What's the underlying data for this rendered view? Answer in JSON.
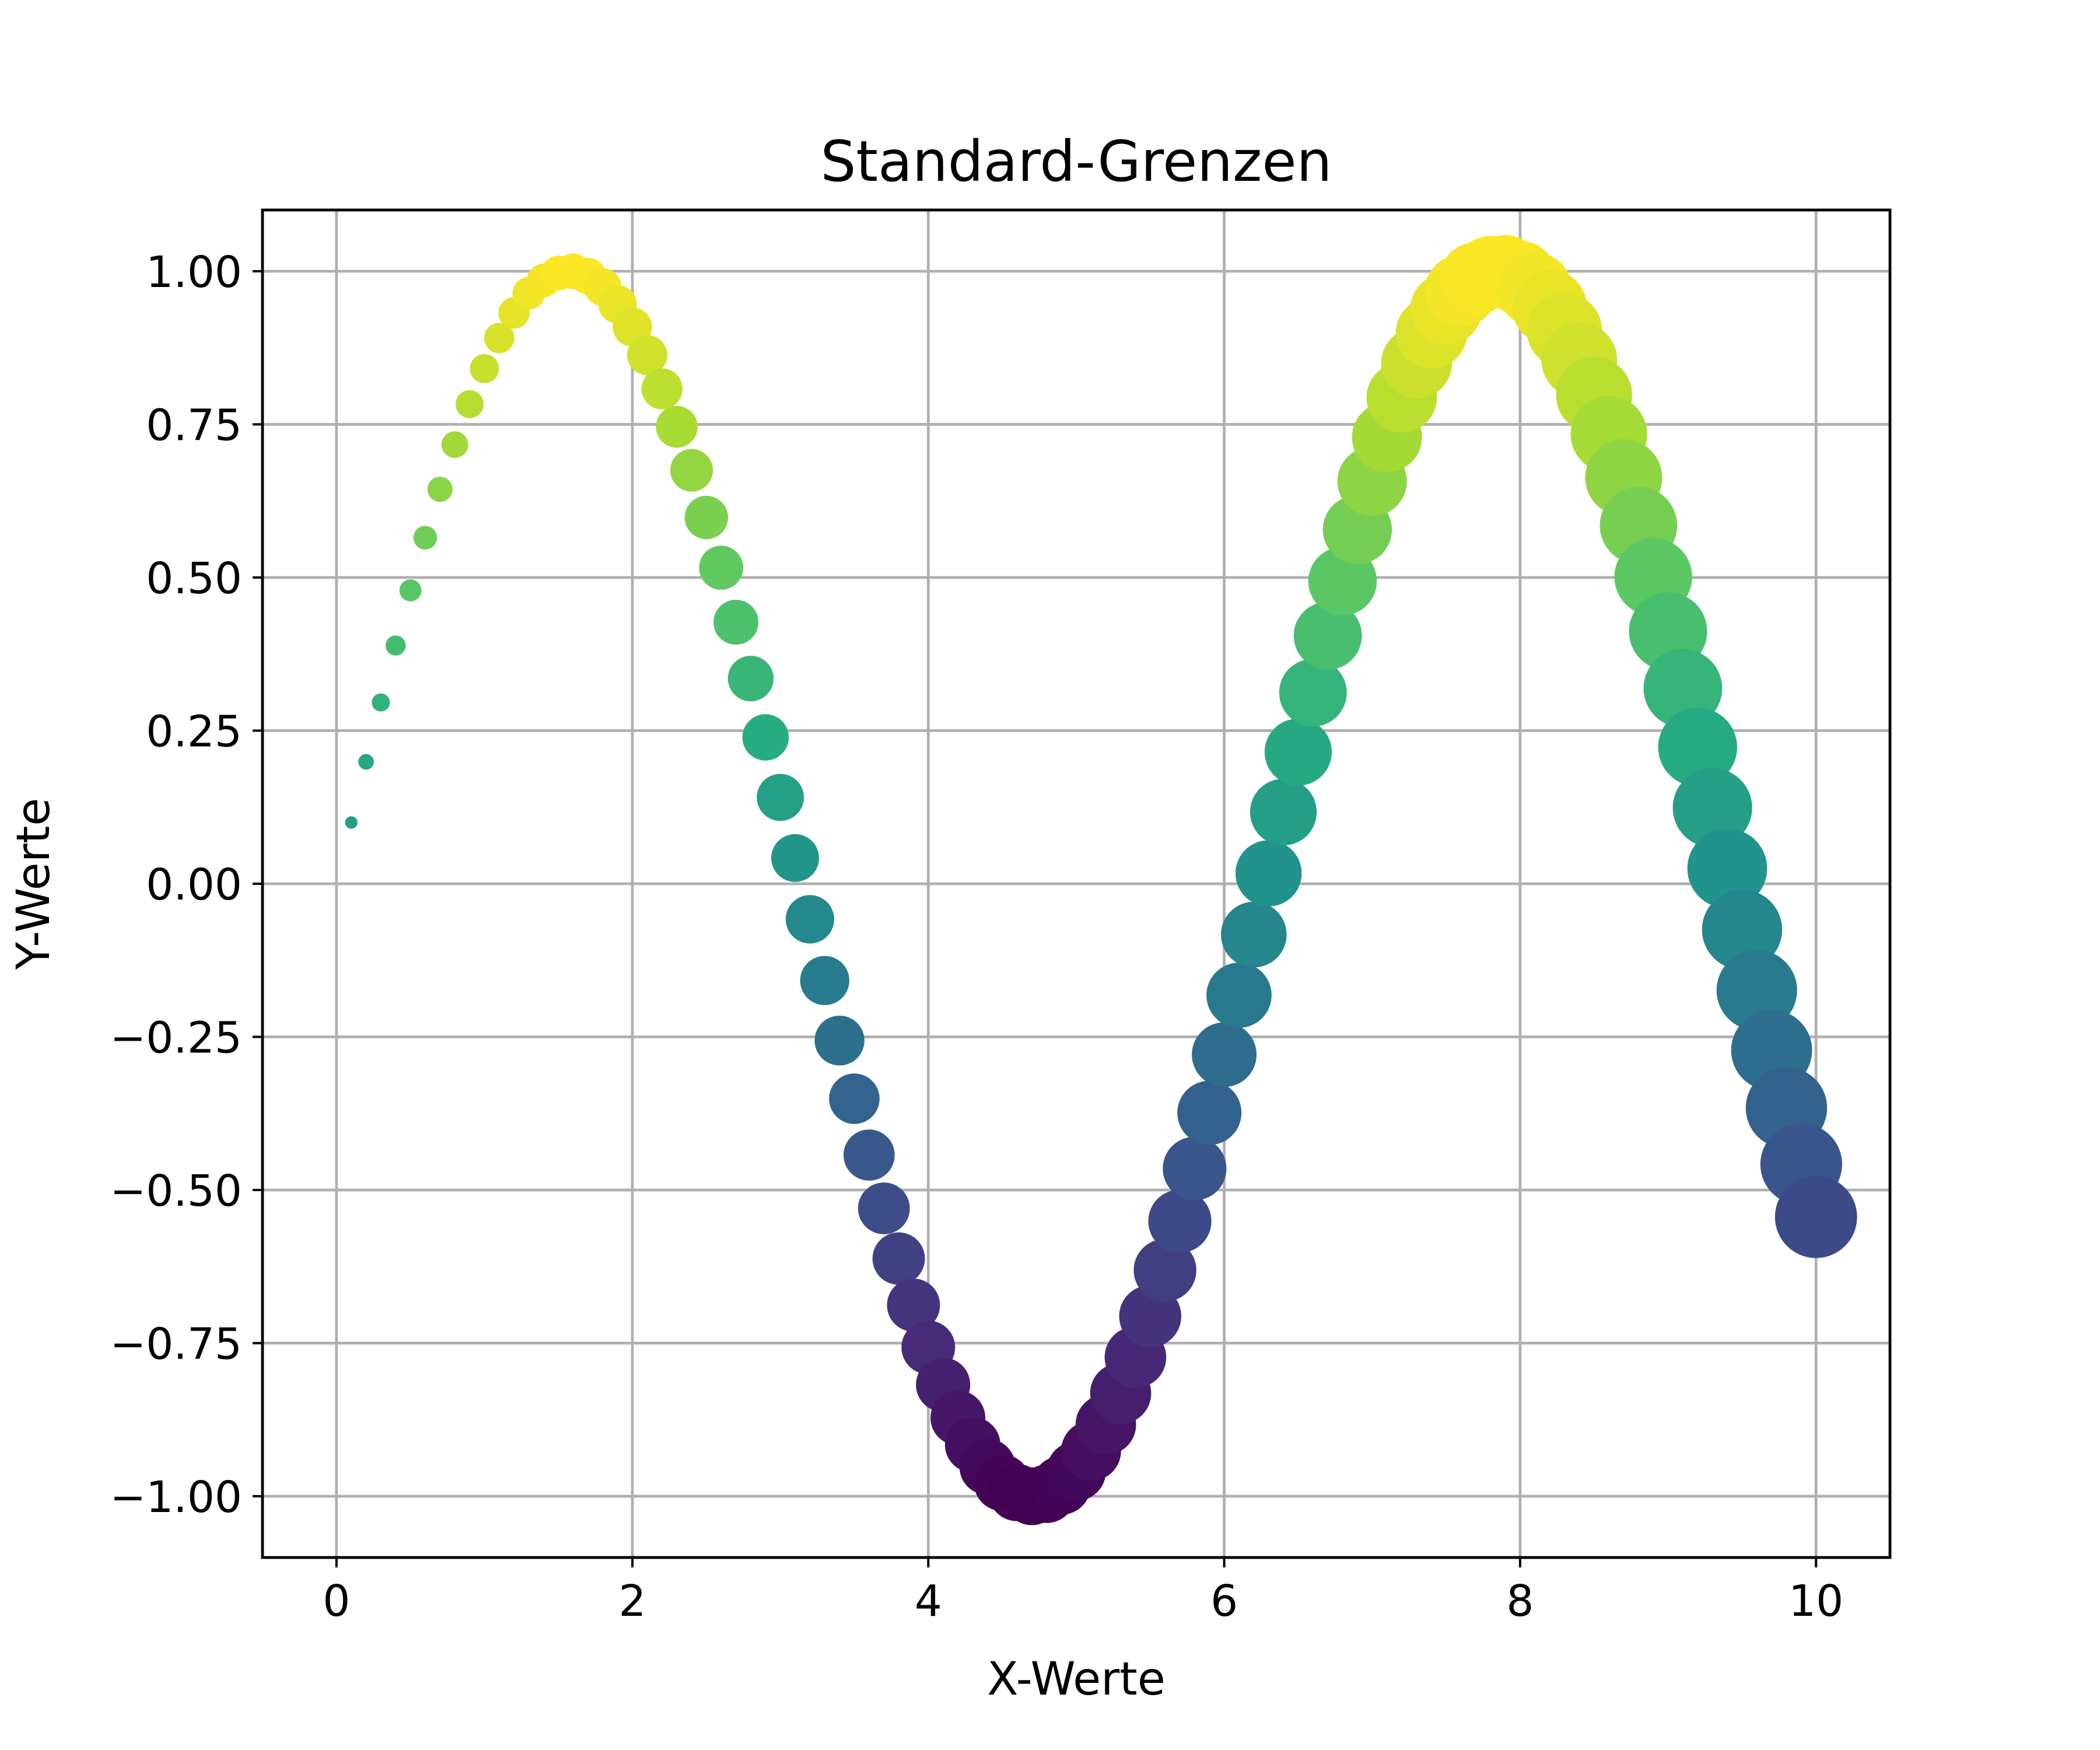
{
  "chart_data": {
    "type": "scatter",
    "title": "Standard-Grenzen",
    "xlabel": "X-Werte",
    "ylabel": "Y-Werte",
    "xlim": [
      -0.5,
      10.5
    ],
    "ylim": [
      -1.1,
      1.1
    ],
    "grid": true,
    "legend": "none",
    "colormap": "viridis",
    "color_encoding": "y value (sin x) mapped from -1 (dark purple #440154) to 1 (yellow #fde725)",
    "size_encoding": "marker size grows linearly with x",
    "xticks": [
      0,
      2,
      4,
      6,
      8,
      10
    ],
    "xtick_labels": [
      "0",
      "2",
      "4",
      "6",
      "8",
      "10"
    ],
    "yticks": [
      -1.0,
      -0.75,
      -0.5,
      -0.25,
      0.0,
      0.25,
      0.5,
      0.75,
      1.0
    ],
    "ytick_labels": [
      "−1.00",
      "−0.75",
      "−0.50",
      "−0.25",
      "0.00",
      "0.25",
      "0.50",
      "0.75",
      "1.00"
    ],
    "series": [
      {
        "x": [
          0.1,
          0.2,
          0.3,
          0.4,
          0.5,
          0.6,
          0.7,
          0.8,
          0.9,
          1.0,
          1.1,
          1.2,
          1.3,
          1.4,
          1.5,
          1.6,
          1.7,
          1.8,
          1.9,
          2.0,
          2.1,
          2.2,
          2.3,
          2.4,
          2.5,
          2.6,
          2.7,
          2.8,
          2.9,
          3.0,
          3.1,
          3.2,
          3.3,
          3.4,
          3.5,
          3.6,
          3.7,
          3.8,
          3.9,
          4.0,
          4.1,
          4.2,
          4.3,
          4.4,
          4.5,
          4.6,
          4.7,
          4.8,
          4.9,
          5.0,
          5.1,
          5.2,
          5.3,
          5.4,
          5.5,
          5.6,
          5.7,
          5.8,
          5.9,
          6.0,
          6.1,
          6.2,
          6.3,
          6.4,
          6.5,
          6.6,
          6.7,
          6.8,
          6.9,
          7.0,
          7.1,
          7.2,
          7.3,
          7.4,
          7.5,
          7.6,
          7.7,
          7.8,
          7.9,
          8.0,
          8.1,
          8.2,
          8.3,
          8.4,
          8.5,
          8.6,
          8.7,
          8.8,
          8.9,
          9.0,
          9.1,
          9.2,
          9.3,
          9.4,
          9.5,
          9.6,
          9.7,
          9.8,
          9.9,
          10.0
        ],
        "y": [
          0.1,
          0.199,
          0.296,
          0.389,
          0.479,
          0.565,
          0.644,
          0.717,
          0.783,
          0.841,
          0.891,
          0.932,
          0.964,
          0.985,
          0.997,
          1.0,
          0.992,
          0.974,
          0.946,
          0.909,
          0.863,
          0.808,
          0.746,
          0.675,
          0.598,
          0.516,
          0.427,
          0.335,
          0.239,
          0.141,
          0.042,
          -0.058,
          -0.158,
          -0.256,
          -0.351,
          -0.443,
          -0.53,
          -0.612,
          -0.688,
          -0.757,
          -0.818,
          -0.872,
          -0.916,
          -0.952,
          -0.978,
          -0.994,
          -1.0,
          -0.996,
          -0.982,
          -0.959,
          -0.926,
          -0.883,
          -0.832,
          -0.773,
          -0.706,
          -0.631,
          -0.551,
          -0.465,
          -0.374,
          -0.279,
          -0.182,
          -0.083,
          0.017,
          0.117,
          0.215,
          0.312,
          0.405,
          0.494,
          0.578,
          0.657,
          0.729,
          0.794,
          0.85,
          0.899,
          0.938,
          0.968,
          0.988,
          0.998,
          0.999,
          0.989,
          0.97,
          0.941,
          0.903,
          0.855,
          0.798,
          0.734,
          0.663,
          0.585,
          0.501,
          0.412,
          0.319,
          0.223,
          0.124,
          0.025,
          -0.075,
          -0.174,
          -0.272,
          -0.366,
          -0.458,
          -0.544
        ]
      }
    ]
  }
}
